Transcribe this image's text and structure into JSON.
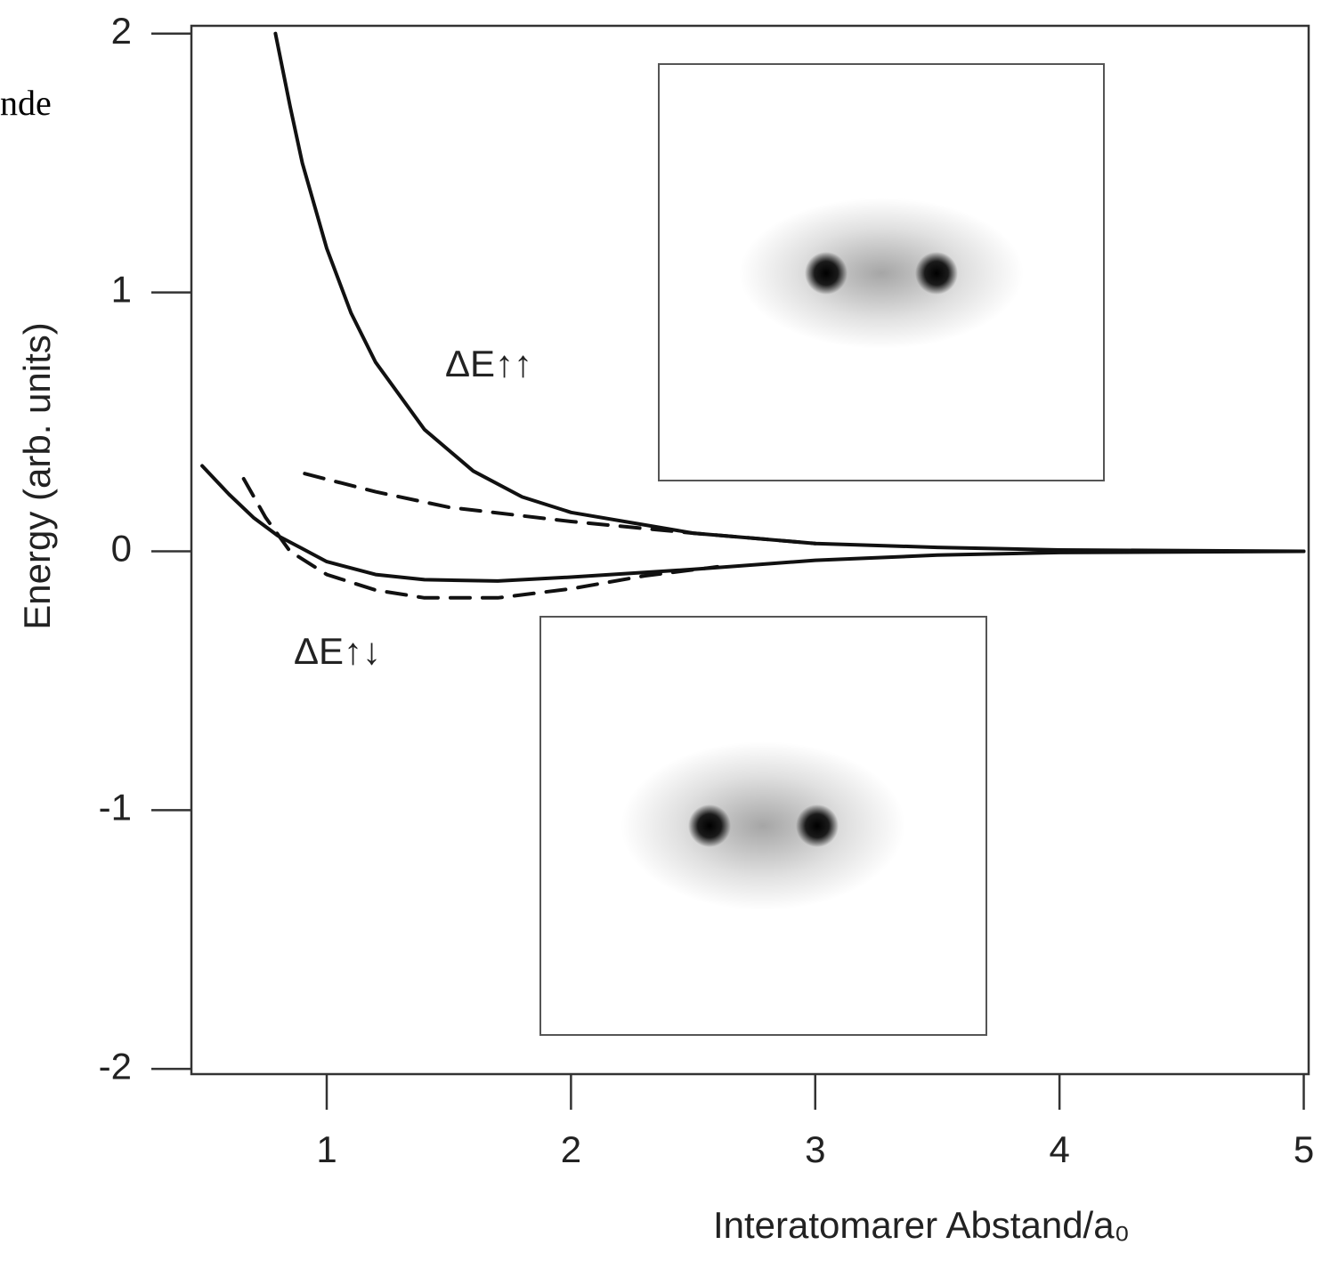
{
  "chart_data": {
    "type": "line",
    "page_text": "nde",
    "ylabel": "Energy (arb. units)",
    "xlabel": "Interatomarer Abstand/a₀",
    "annotations": [
      "ΔE↑↑",
      "ΔE↑↓"
    ],
    "series": [
      {
        "color": "#111111",
        "dashed": false,
        "x": [
          0.79,
          0.85,
          0.9,
          1.0,
          1.1,
          1.2,
          1.4,
          1.6,
          1.8,
          2.0,
          2.5,
          3,
          3.5,
          4,
          5
        ],
        "values": [
          2.0,
          1.72,
          1.5,
          1.17,
          0.92,
          0.73,
          0.47,
          0.31,
          0.21,
          0.15,
          0.07,
          0.03,
          0.015,
          0.005,
          0
        ]
      },
      {
        "color": "#111111",
        "dashed": false,
        "x": [
          0.49,
          0.6,
          0.7,
          0.8,
          0.9,
          1.0,
          1.2,
          1.4,
          1.7,
          2.0,
          2.5,
          3,
          3.5,
          4,
          5
        ],
        "values": [
          0.33,
          0.22,
          0.13,
          0.06,
          0.01,
          -0.04,
          -0.09,
          -0.11,
          -0.115,
          -0.1,
          -0.07,
          -0.035,
          -0.015,
          -0.005,
          0
        ]
      },
      {
        "color": "#111111",
        "dashed": true,
        "x": [
          0.91,
          1.2,
          1.5,
          2.0,
          2.5,
          3
        ],
        "values": [
          0.3,
          0.23,
          0.17,
          0.115,
          0.07,
          0.03
        ]
      },
      {
        "color": "#111111",
        "dashed": true,
        "x": [
          0.66,
          0.75,
          0.85,
          1.0,
          1.2,
          1.4,
          1.7,
          2.0,
          2.3,
          2.6
        ],
        "values": [
          0.28,
          0.13,
          0.0,
          -0.09,
          -0.15,
          -0.18,
          -0.18,
          -0.145,
          -0.095,
          -0.06
        ]
      }
    ],
    "xlim": [
      0.446,
      5.02
    ],
    "ylim": [
      -2.02,
      2.03
    ],
    "xticks": [
      1,
      2,
      3,
      4,
      5
    ],
    "yticks": [
      -2,
      -1,
      0,
      1,
      2
    ]
  }
}
